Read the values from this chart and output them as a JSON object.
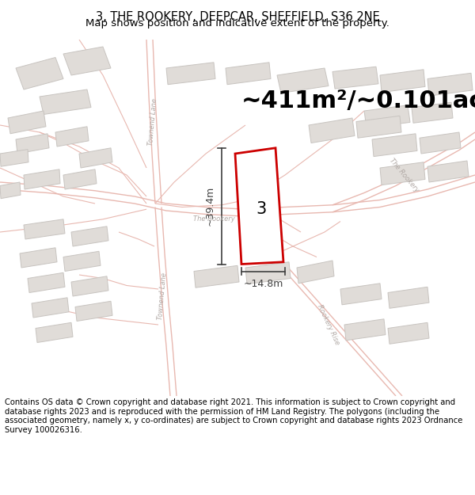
{
  "title": "3, THE ROOKERY, DEEPCAR, SHEFFIELD, S36 2NE",
  "subtitle": "Map shows position and indicative extent of the property.",
  "area_label": "~411m²/~0.101ac.",
  "number_label": "3",
  "dim_width": "~14.8m",
  "dim_height": "~39.4m",
  "footer": "Contains OS data © Crown copyright and database right 2021. This information is subject to Crown copyright and database rights 2023 and is reproduced with the permission of HM Land Registry. The polygons (including the associated geometry, namely x, y co-ordinates) are subject to Crown copyright and database rights 2023 Ordnance Survey 100026316.",
  "bg_color": "#f7f6f4",
  "road_line_color": "#e8b8b0",
  "road_label_color": "#b0a8a4",
  "building_fill": "#e0dcd8",
  "building_outline": "#c8c4c0",
  "highlight_fill": "#ffffff",
  "highlight_stroke": "#cc0000",
  "dim_color": "#404040",
  "title_fontsize": 10.5,
  "subtitle_fontsize": 9.5,
  "area_fontsize": 22,
  "footer_fontsize": 7.2,
  "map_xlim": [
    0,
    600
  ],
  "map_ylim": [
    0,
    500
  ]
}
